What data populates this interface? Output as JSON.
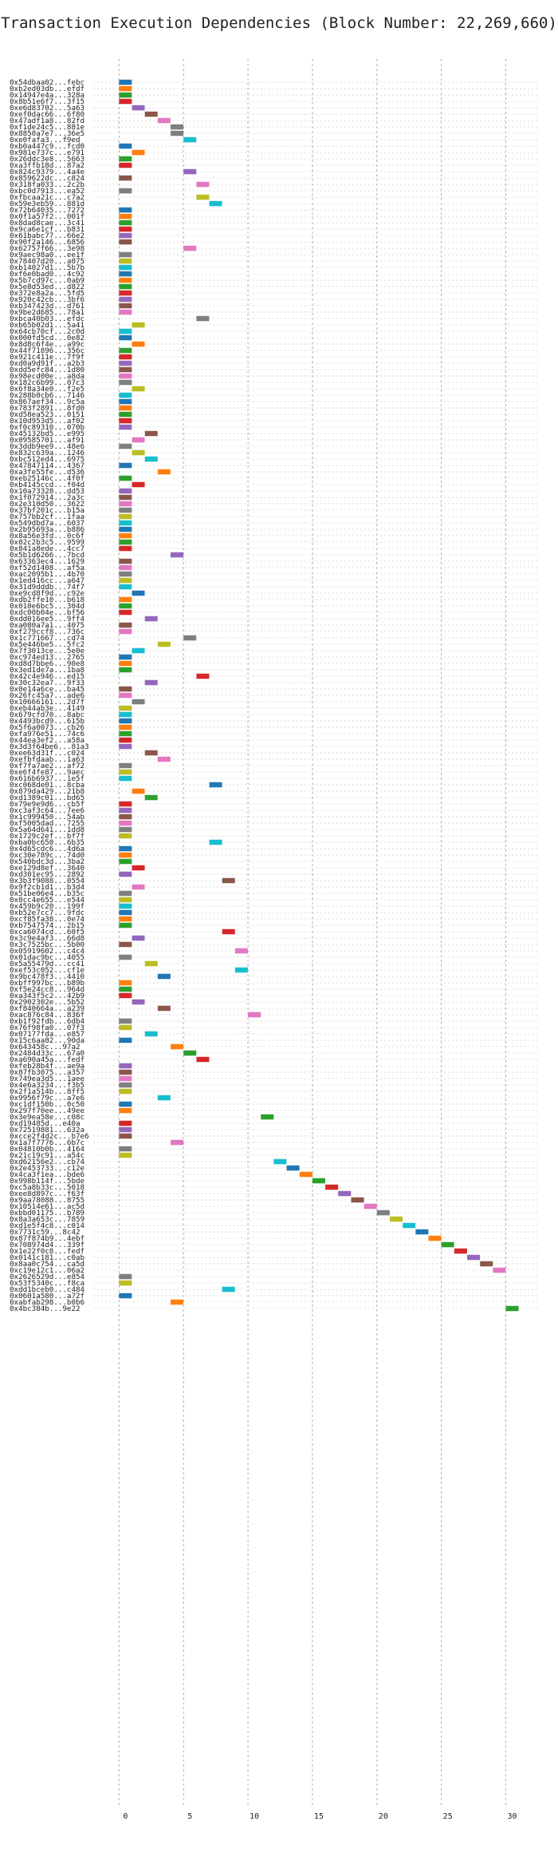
{
  "chart_data": {
    "type": "bar",
    "orientation": "horizontal",
    "title": "Transaction Execution Dependencies (Block Number: 22,269,660)",
    "xlabel": "",
    "ylabel": "",
    "xlim": [
      -2,
      32.5
    ],
    "xticks": [
      0,
      5,
      10,
      15,
      20,
      25,
      30
    ],
    "grid": true,
    "legend": "none",
    "color_cycle": [
      "#1f77b4",
      "#ff7f0e",
      "#2ca02c",
      "#d62728",
      "#9467bd",
      "#8c564b",
      "#e377c2",
      "#7f7f7f",
      "#bcbd22",
      "#17becf"
    ],
    "categories": [
      "0x54dbaa02...febc",
      "0xb2ed03db...efdf",
      "0x14947e4a...328a",
      "0x8b51e6f7...3f15",
      "0xe6d83702...5a63",
      "0xef0dac66...6f80",
      "0x47adf1a8...82fd",
      "0xf1de24c5...881e",
      "0x8850a7e7...36e5",
      "0xe0fafa3...f9ed",
      "0xb0a447c9...fcd0",
      "0x981e737c...e791",
      "0x26ddc3e8...5663",
      "0xa3ffb18d...87a2",
      "0x824c9379...4a4e",
      "0x859622dc...c824",
      "0x318fa033...2c2b",
      "0xbc0d7913...ea52",
      "0xfbcaa21c...c7a2",
      "0x59e3eb59...881d",
      "0x72b64035...7272",
      "0x0f1a57f2...001f",
      "0x8dad8cae...3c41",
      "0x9ca6e1cf...b831",
      "0x61babc77...66e2",
      "0x90f2a146...6856",
      "0x62757f66...3e98",
      "0x9aec98a0...ee1f",
      "0x78407d20...a075",
      "0xb14027d1...5b7b",
      "0xf6e0bad0...4c92",
      "0x5b7cd97c...0ab9",
      "0x5e8d53ed...d822",
      "0x372e8a2a...5fd5",
      "0x920c42cb...3bf6",
      "0xb347423d...d761",
      "0x9be2d685...78a1",
      "0xbca40b03...efdc",
      "0xb65b02d1...5a41",
      "0x64cb70cf...2c0d",
      "0x000fd5cd...0e82",
      "0x8d8c6f4e...a99c",
      "0x44f71896...356c",
      "0x921c411e...7f9f",
      "0xd0a9d91f...a2b3",
      "0xdd5efc84...1d80",
      "0x98ecd00e...a8da",
      "0x182c6b99...07c3",
      "0x6f8a34e0...f2e5",
      "0x288b0cb6...7146",
      "0x867aef34...9c5a",
      "0x783f2891...8fd0",
      "0xd58ea523...0151",
      "0x10d953d5...af02",
      "0xf0c89310...070b",
      "0x45132bd5...e995",
      "0x09585701...af91",
      "0x3ddb9ee9...48e6",
      "0x832c639a...1246",
      "0xbc512ed4...6975",
      "0x47847114...4367",
      "0xa3fe55fe...d536",
      "0xeb25146c...4f0f",
      "0xb4145ccd...f04d",
      "0x10a73328...dd53",
      "0x1f072914...2a3c",
      "0x2e310d50...3622",
      "0x37bf201c...b15a",
      "0x757bb2cf...1faa",
      "0x549dbd7a...6037",
      "0x2b95693a...b886",
      "0x8a56e3fd...0c6f",
      "0x02c2b3c5...9599",
      "0x841a8ede...4cc7",
      "0x5b1d6266...7bcd",
      "0x63363ec4...1629",
      "0xf52d1408...af5a",
      "0xac2095b1...4b70",
      "0x1ed416cc...a647",
      "0x31d9dddb...74f7",
      "0xe9cd8f9d...c92e",
      "0xdb2ffe10...b618",
      "0x010e6bc5...304d",
      "0xdc00b04e...bf56",
      "0xdd016ee5...9ff4",
      "0xa080a7a1...4075",
      "0xf279ccf8...736c",
      "0x1c771667...cd74",
      "0x5e446be5...5fc2",
      "0x7f3013ce...5e0e",
      "0xc974ed13...2765",
      "0xd8d7bbe6...90e8",
      "0x3ed1de7a...1ba8",
      "0x42c4e946...ed15",
      "0x30c32ea7...9f33",
      "0x0e14a6ce...ba45",
      "0x26fc45a7...ade6",
      "0x10666161...2d7f",
      "0xeb44ab3e...4149",
      "0x679cfd70...8abc",
      "0x4493bcd9...615b",
      "0x5f6a0073...cb26",
      "0xfa976e51...74c6",
      "0x44ea3ef2...a58a",
      "0x3d3f64be6...81a3",
      "0xee63d31f...c024",
      "0xefbfdaab...1a63",
      "0xf7fa7ae2...af72",
      "0xe6f4fe87...9aec",
      "0x616b6937...1e5f",
      "0xc068de01...8cba",
      "0x879da429...21b8",
      "0xd1389c01...bd65",
      "0x79e9e9d6...cb5f",
      "0xc3af3c64...7ee6",
      "0x1c999450...54ab",
      "0xf5005dad...7255",
      "0x5a64d641...1dd8",
      "0x1729c2ef...bf7f",
      "0xba0bc650...6b35",
      "0x4d65cdc6...4d6a",
      "0xc30e789c...74d0",
      "0x540bdc3d...3ba2",
      "0xe129d8ef...3640",
      "0xd301ec95...2892",
      "0x3b3f9088...0554",
      "0x9f2cb1d1...b3d4",
      "0x51be06e4...b35c",
      "0x0cc4e655...e544",
      "0x459b9c20...199f",
      "0xb52e7cc7...9fdc",
      "0xcf85fa38...0e74",
      "0xb7547574...2b15",
      "0xca6074cd...60f5",
      "0x3c9e4af3...66d8",
      "0x3c7525bc...5b00",
      "0x05919602...c4c4",
      "0x01dac9bc...4055",
      "0x5a55479d...cc41",
      "0xef53c052...cf1e",
      "0x9bc478f3...4410",
      "0xbff997bc...b89b",
      "0xf5e24cc8...964d",
      "0xa343f5c2...42b9",
      "0x2902302e...5b52",
      "0xf840664a...a239",
      "0xac876c84...836f",
      "0xb1f92fdb...6db4",
      "0x76f98fa0...07f3",
      "0x07177fda...e857",
      "0x15c6aa82...90da",
      "0x643458c...97a2",
      "0x2484d33c...67a0",
      "0xa690a45a...fedf",
      "0xfeb28b4f...ae9a",
      "0x87fb3075...a357",
      "0x749ea3d5...1aee",
      "0x4e6a3234...f3b5",
      "0x2f1a514b...8ff5",
      "0x9956f79c...a7e6",
      "0xc1df150b...0c50",
      "0x297f70ee...49ee",
      "0x3e9ea58e...c08c",
      "0xd19485d...e40a",
      "0x72519881...632a",
      "0xcce2f4d2c...b7e6",
      "0x1a7f7776...6b7c",
      "0x04810b0b...4164",
      "0x21c19c91...a54c",
      "0xd62156e2...cb74",
      "0x2e453733...c12e",
      "0x4ca3f1ea...bde6",
      "0x998b114f...5bde",
      "0xc5a8b33c...5018",
      "0xee8d897c...f63f",
      "0x9aa78088...8755",
      "0x10514e61...ac5d",
      "0xbbd01175...b789",
      "0x8a3a653c...7859",
      "0xd1e5f4c8...c014",
      "0x7731c59...8c42",
      "0x87f874b9...4ebf",
      "0x708974d4...339f",
      "0x1e22f0c8...fedf",
      "0x0141c181...c0ab",
      "0x8aa0c754...ca5d",
      "0xc19e12c1...06a2",
      "0x2626529d...e854",
      "0x53f5340c...f8ca",
      "0xdd1bceb0...c484",
      "0x0601a580...a72f",
      "0xabfab298...b0b6",
      "0x4bc384b...9e22"
    ],
    "values": [
      0,
      0,
      0,
      0,
      1,
      2,
      3,
      4,
      4,
      5,
      0,
      1,
      0,
      0,
      5,
      0,
      6,
      0,
      6,
      7,
      0,
      0,
      0,
      0,
      0,
      0,
      5,
      0,
      0,
      0,
      0,
      0,
      0,
      0,
      0,
      0,
      0,
      6,
      1,
      0,
      0,
      1,
      0,
      0,
      0,
      0,
      0,
      0,
      1,
      0,
      0,
      0,
      0,
      0,
      0,
      2,
      1,
      0,
      1,
      2,
      0,
      3,
      0,
      1,
      0,
      0,
      0,
      0,
      0,
      0,
      0,
      0,
      0,
      0,
      4,
      0,
      0,
      0,
      0,
      0,
      1,
      0,
      0,
      0,
      2,
      0,
      0,
      5,
      3,
      1,
      0,
      0,
      0,
      6,
      2,
      0,
      0,
      1,
      0,
      0,
      0,
      0,
      0,
      0,
      0,
      2,
      3,
      0,
      0,
      0,
      7,
      1,
      2,
      0,
      0,
      0,
      0,
      0,
      0,
      7,
      0,
      0,
      0,
      1,
      0,
      8,
      1,
      0,
      0,
      0,
      0,
      0,
      0,
      8,
      1,
      0,
      9,
      0,
      2,
      9,
      3,
      0,
      0,
      0,
      1,
      3,
      10,
      0,
      0,
      2,
      0,
      4,
      5,
      6,
      0,
      0,
      0,
      0,
      0,
      3,
      0,
      0,
      11,
      0,
      0,
      0,
      4,
      0,
      0,
      12,
      13,
      14,
      15,
      16,
      17,
      18,
      19,
      20,
      21,
      22,
      23,
      24,
      25,
      26,
      27,
      28,
      29,
      0,
      0,
      8,
      0,
      4,
      30
    ],
    "colors": [
      "#1f77b4",
      "#ff7f0e",
      "#2ca02c",
      "#d62728",
      "#9467bd",
      "#8c564b",
      "#e377c2",
      "#7f7f7f",
      "#7f7f7f",
      "#17becf",
      "#1f77b4",
      "#ff7f0e",
      "#2ca02c",
      "#d62728",
      "#9467bd",
      "#8c564b",
      "#e377c2",
      "#7f7f7f",
      "#bcbd22",
      "#17becf",
      "#1f77b4",
      "#ff7f0e",
      "#2ca02c",
      "#d62728",
      "#9467bd",
      "#8c564b",
      "#e377c2",
      "#7f7f7f",
      "#bcbd22",
      "#17becf",
      "#1f77b4",
      "#ff7f0e",
      "#2ca02c",
      "#d62728",
      "#9467bd",
      "#8c564b",
      "#e377c2",
      "#7f7f7f",
      "#bcbd22",
      "#17becf",
      "#1f77b4",
      "#ff7f0e",
      "#2ca02c",
      "#d62728",
      "#9467bd",
      "#8c564b",
      "#e377c2",
      "#7f7f7f",
      "#bcbd22",
      "#17becf",
      "#1f77b4",
      "#ff7f0e",
      "#2ca02c",
      "#d62728",
      "#9467bd",
      "#8c564b",
      "#e377c2",
      "#7f7f7f",
      "#bcbd22",
      "#17becf",
      "#1f77b4",
      "#ff7f0e",
      "#2ca02c",
      "#d62728",
      "#9467bd",
      "#8c564b",
      "#e377c2",
      "#7f7f7f",
      "#bcbd22",
      "#17becf",
      "#1f77b4",
      "#ff7f0e",
      "#2ca02c",
      "#d62728",
      "#9467bd",
      "#8c564b",
      "#e377c2",
      "#7f7f7f",
      "#bcbd22",
      "#17becf",
      "#1f77b4",
      "#ff7f0e",
      "#2ca02c",
      "#d62728",
      "#9467bd",
      "#8c564b",
      "#e377c2",
      "#7f7f7f",
      "#bcbd22",
      "#17becf",
      "#1f77b4",
      "#ff7f0e",
      "#2ca02c",
      "#d62728",
      "#9467bd",
      "#8c564b",
      "#e377c2",
      "#7f7f7f",
      "#bcbd22",
      "#17becf",
      "#1f77b4",
      "#ff7f0e",
      "#2ca02c",
      "#d62728",
      "#9467bd",
      "#8c564b",
      "#e377c2",
      "#7f7f7f",
      "#bcbd22",
      "#17becf",
      "#1f77b4",
      "#ff7f0e",
      "#2ca02c",
      "#d62728",
      "#9467bd",
      "#8c564b",
      "#e377c2",
      "#7f7f7f",
      "#bcbd22",
      "#17becf",
      "#1f77b4",
      "#ff7f0e",
      "#2ca02c",
      "#d62728",
      "#9467bd",
      "#8c564b",
      "#e377c2",
      "#7f7f7f",
      "#bcbd22",
      "#17becf",
      "#1f77b4",
      "#ff7f0e",
      "#2ca02c",
      "#d62728",
      "#9467bd",
      "#8c564b",
      "#e377c2",
      "#7f7f7f",
      "#bcbd22",
      "#17becf",
      "#1f77b4",
      "#ff7f0e",
      "#2ca02c",
      "#d62728",
      "#9467bd",
      "#8c564b",
      "#e377c2",
      "#7f7f7f",
      "#bcbd22",
      "#17becf",
      "#1f77b4",
      "#ff7f0e",
      "#2ca02c",
      "#d62728",
      "#9467bd",
      "#8c564b",
      "#e377c2",
      "#7f7f7f",
      "#bcbd22",
      "#17becf",
      "#1f77b4",
      "#ff7f0e",
      "#2ca02c",
      "#d62728",
      "#9467bd",
      "#8c564b",
      "#e377c2",
      "#7f7f7f",
      "#bcbd22",
      "#17becf",
      "#1f77b4",
      "#ff7f0e",
      "#2ca02c",
      "#d62728",
      "#9467bd",
      "#8c564b",
      "#e377c2",
      "#7f7f7f",
      "#bcbd22",
      "#17becf",
      "#1f77b4",
      "#ff7f0e",
      "#2ca02c",
      "#d62728",
      "#9467bd",
      "#8c564b",
      "#e377c2",
      "#7f7f7f",
      "#bcbd22",
      "#17becf",
      "#1f77b4",
      "#ff7f0e",
      "#2ca02c"
    ]
  }
}
